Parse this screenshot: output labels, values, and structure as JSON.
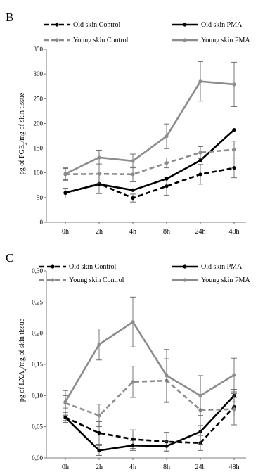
{
  "colors": {
    "old": "#000000",
    "young": "#8c8c8c",
    "axis": "#555555",
    "error": "#555555"
  },
  "chart_data": [
    {
      "type": "line",
      "panel_label": "B",
      "ylabel_parts": [
        "pg of PGE",
        "2",
        "/mg of skin tissue"
      ],
      "categories": [
        "0h",
        "2h",
        "4h",
        "8h",
        "24h",
        "48h"
      ],
      "yticks": [
        "0",
        "50",
        "100",
        "150",
        "200",
        "250",
        "300",
        "350"
      ],
      "ylim": [
        0,
        350
      ],
      "grid": false,
      "legend_placement": "top",
      "series": [
        {
          "name": "Old skin Control",
          "style": "dashed",
          "color": "#000000",
          "values": [
            59,
            78,
            49,
            73,
            97,
            110
          ],
          "errors": [
            10,
            20,
            8,
            18,
            20,
            20
          ]
        },
        {
          "name": "Old skin PMA",
          "style": "solid",
          "color": "#000000",
          "values": [
            60,
            77,
            65,
            88,
            125,
            187
          ],
          "errors": [
            0,
            0,
            0,
            0,
            0,
            0
          ]
        },
        {
          "name": "Young skin Control",
          "style": "dashed",
          "color": "#8c8c8c",
          "values": [
            97,
            98,
            97,
            120,
            141,
            147
          ],
          "errors": [
            12,
            20,
            15,
            10,
            12,
            17
          ]
        },
        {
          "name": "Young skin PMA",
          "style": "solid",
          "color": "#8c8c8c",
          "values": [
            98,
            131,
            124,
            174,
            285,
            279
          ],
          "errors": [
            12,
            15,
            14,
            25,
            40,
            45
          ]
        }
      ]
    },
    {
      "type": "line",
      "panel_label": "C",
      "ylabel_parts": [
        "pg of LXA",
        "4",
        "/mg of skin tissue"
      ],
      "categories": [
        "0h",
        "2h",
        "4h",
        "8h",
        "24h",
        "48h"
      ],
      "yticks": [
        "0,00",
        "0,05",
        "0,10",
        "0,15",
        "0,20",
        "0,25",
        "0,30"
      ],
      "ylim": [
        0,
        0.3
      ],
      "grid": false,
      "legend_placement": "top",
      "series": [
        {
          "name": "Old skin Control",
          "style": "dashed",
          "color": "#000000",
          "values": [
            0.065,
            0.04,
            0.03,
            0.026,
            0.024,
            0.082
          ],
          "errors": [
            0.008,
            0.018,
            0.015,
            0.015,
            0.012,
            0.015
          ]
        },
        {
          "name": "Old skin PMA",
          "style": "solid",
          "color": "#000000",
          "values": [
            0.065,
            0.012,
            0.02,
            0.019,
            0.042,
            0.1
          ],
          "errors": [
            0.005,
            0.008,
            0.008,
            0.008,
            0.01,
            0.01
          ]
        },
        {
          "name": "Young skin Control",
          "style": "dashed",
          "color": "#8c8c8c",
          "values": [
            0.088,
            0.068,
            0.122,
            0.124,
            0.077,
            0.078
          ],
          "errors": [
            0.02,
            0.018,
            0.025,
            0.035,
            0.055,
            0.025
          ]
        },
        {
          "name": "Young skin PMA",
          "style": "solid",
          "color": "#8c8c8c",
          "values": [
            0.09,
            0.182,
            0.218,
            0.132,
            0.1,
            0.133
          ],
          "errors": [
            0.01,
            0.025,
            0.04,
            0.042,
            0.032,
            0.027
          ]
        }
      ]
    }
  ]
}
